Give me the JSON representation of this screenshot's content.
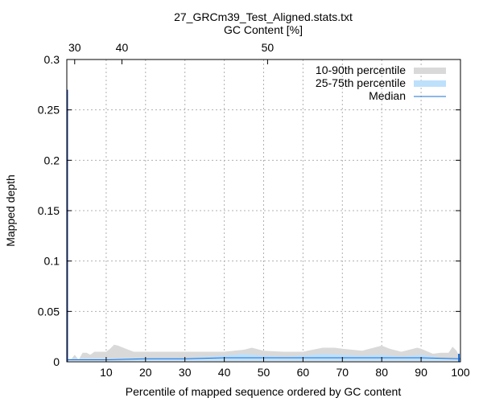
{
  "chart_data": {
    "type": "area",
    "title": "27_GRCm39_Test_Aligned.stats.txt",
    "x2label": "GC Content [%]",
    "xlabel": "Percentile of mapped sequence ordered by GC content",
    "ylabel": "Mapped depth",
    "xlim": [
      0,
      100
    ],
    "ylim": [
      0,
      0.3
    ],
    "x_ticks": [
      10,
      20,
      30,
      40,
      50,
      60,
      70,
      80,
      90,
      100
    ],
    "y_ticks": [
      0.05,
      0.1,
      0.15,
      0.2,
      0.25,
      0.3
    ],
    "y_tick_labels": [
      "0.05",
      "0.1",
      "0.15",
      "0.2",
      "0.25",
      "0.3"
    ],
    "y_zero_label": "0",
    "x2_ticks": [
      {
        "label": "30",
        "x": 2
      },
      {
        "label": "40",
        "x": 14
      },
      {
        "label": "50",
        "x": 51
      }
    ],
    "grid": true,
    "legend_position": "top-right",
    "colors": {
      "p10_90": "#d9d9d9",
      "p25_75": "#bde0fb",
      "median": "#1a6fd6",
      "spike": "#1a3fa8"
    },
    "series": [
      {
        "name": "10-90th percentile",
        "x": [
          0,
          1,
          2,
          3,
          4,
          5,
          6,
          7,
          8,
          9,
          10,
          11,
          12,
          13,
          15,
          17,
          20,
          25,
          30,
          35,
          40,
          45,
          47,
          50,
          55,
          60,
          65,
          68,
          70,
          75,
          80,
          82,
          85,
          89,
          90,
          93,
          95,
          97,
          98,
          99,
          100
        ],
        "upper": [
          0.003,
          0.002,
          0.007,
          0.002,
          0.009,
          0.009,
          0.007,
          0.01,
          0.01,
          0.01,
          0.01,
          0.013,
          0.017,
          0.016,
          0.013,
          0.01,
          0.01,
          0.01,
          0.01,
          0.01,
          0.01,
          0.012,
          0.014,
          0.011,
          0.01,
          0.01,
          0.014,
          0.014,
          0.013,
          0.011,
          0.016,
          0.013,
          0.01,
          0.014,
          0.013,
          0.008,
          0.009,
          0.009,
          0.015,
          0.011,
          0.003
        ],
        "lower": [
          0.001,
          0.001,
          0.001,
          0.001,
          0.001,
          0.001,
          0.001,
          0.001,
          0.001,
          0.001,
          0.001,
          0.001,
          0.001,
          0.001,
          0.001,
          0.001,
          0.001,
          0.001,
          0.001,
          0.001,
          0.001,
          0.001,
          0.001,
          0.001,
          0.001,
          0.001,
          0.001,
          0.001,
          0.001,
          0.001,
          0.001,
          0.001,
          0.001,
          0.001,
          0.001,
          0.001,
          0.001,
          0.001,
          0.001,
          0.001,
          0.001
        ]
      },
      {
        "name": "25-75th percentile",
        "x": [
          0,
          5,
          10,
          20,
          30,
          40,
          45,
          50,
          55,
          60,
          65,
          70,
          75,
          80,
          85,
          90,
          95,
          100
        ],
        "upper": [
          0.003,
          0.003,
          0.003,
          0.004,
          0.004,
          0.006,
          0.008,
          0.006,
          0.005,
          0.006,
          0.008,
          0.007,
          0.006,
          0.007,
          0.005,
          0.007,
          0.004,
          0.003
        ],
        "lower": [
          0.001,
          0.001,
          0.001,
          0.001,
          0.001,
          0.001,
          0.001,
          0.001,
          0.001,
          0.001,
          0.001,
          0.001,
          0.001,
          0.001,
          0.001,
          0.001,
          0.001,
          0.001
        ]
      },
      {
        "name": "Median",
        "x": [
          0,
          10,
          20,
          30,
          40,
          50,
          60,
          70,
          80,
          90,
          100
        ],
        "values": [
          0.002,
          0.002,
          0.003,
          0.003,
          0.004,
          0.004,
          0.004,
          0.004,
          0.004,
          0.004,
          0.003
        ]
      }
    ],
    "spike": {
      "x": 0.1,
      "value": 0.27
    }
  }
}
